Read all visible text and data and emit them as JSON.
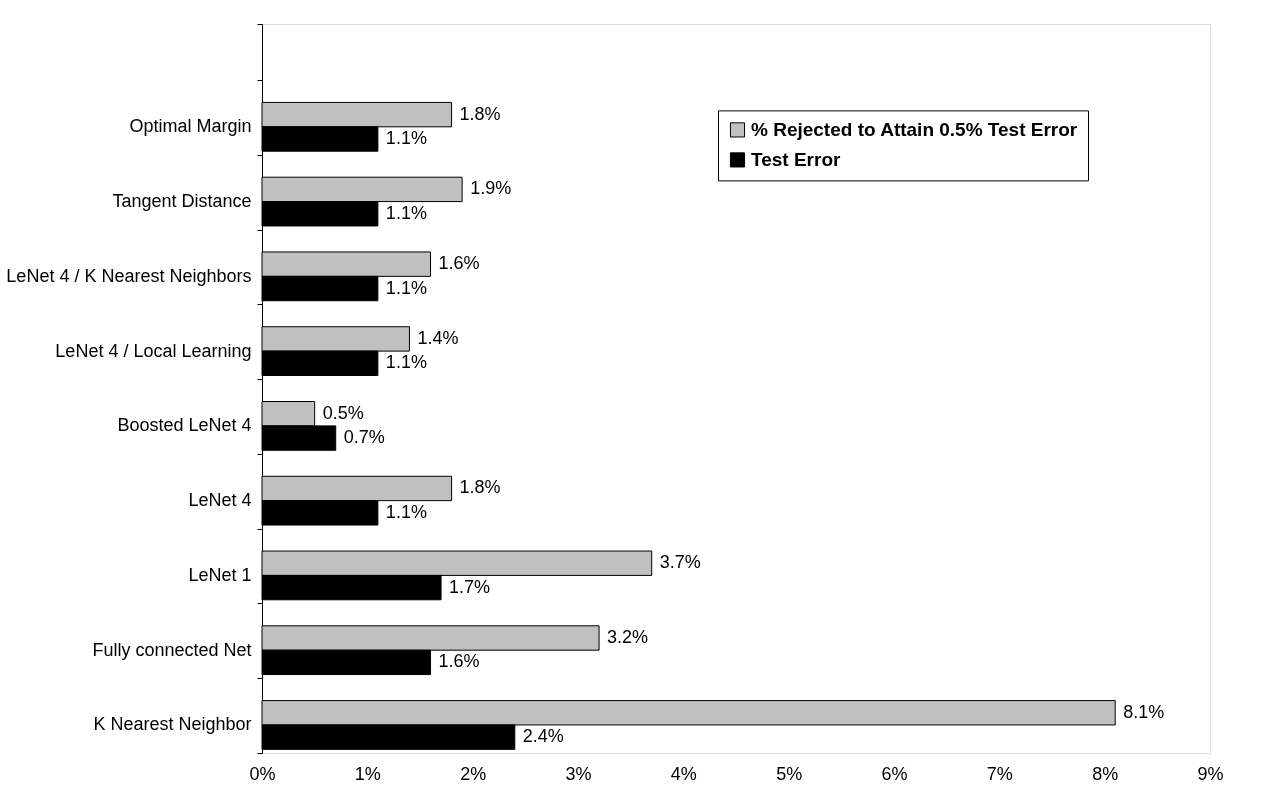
{
  "chart_data": {
    "type": "bar",
    "orientation": "horizontal",
    "categories": [
      null,
      "Optimal Margin",
      "Tangent Distance",
      "LeNet 4 / K Nearest Neighbors",
      "LeNet 4 / Local Learning",
      "Boosted LeNet 4",
      "LeNet 4",
      "LeNet 1",
      "Fully connected Net",
      "K Nearest Neighbor"
    ],
    "series": [
      {
        "name": "% Rejected to Attain 0.5% Test Error",
        "color": "#c0c0c0",
        "values": [
          null,
          1.8,
          1.9,
          1.6,
          1.4,
          0.5,
          1.8,
          3.7,
          3.2,
          8.1
        ],
        "value_labels": [
          null,
          "1.8%",
          "1.9%",
          "1.6%",
          "1.4%",
          "0.5%",
          "1.8%",
          "3.7%",
          "3.2%",
          "8.1%"
        ]
      },
      {
        "name": "Test Error",
        "color": "#000000",
        "values": [
          null,
          1.1,
          1.1,
          1.1,
          1.1,
          0.7,
          1.1,
          1.7,
          1.6,
          2.4
        ],
        "value_labels": [
          null,
          "1.1%",
          "1.1%",
          "1.1%",
          "1.1%",
          "0.7%",
          "1.1%",
          "1.7%",
          "1.6%",
          "2.4%"
        ]
      }
    ],
    "xlim": [
      0,
      9
    ],
    "xticks": [
      {
        "value": 0,
        "label": "0%"
      },
      {
        "value": 1,
        "label": "1%"
      },
      {
        "value": 2,
        "label": "2%"
      },
      {
        "value": 3,
        "label": "3%"
      },
      {
        "value": 4,
        "label": "4%"
      },
      {
        "value": 5,
        "label": "5%"
      },
      {
        "value": 6,
        "label": "6%"
      },
      {
        "value": 7,
        "label": "7%"
      },
      {
        "value": 8,
        "label": "8%"
      },
      {
        "value": 9,
        "label": "9%"
      }
    ],
    "grid": false,
    "legend": "right"
  }
}
